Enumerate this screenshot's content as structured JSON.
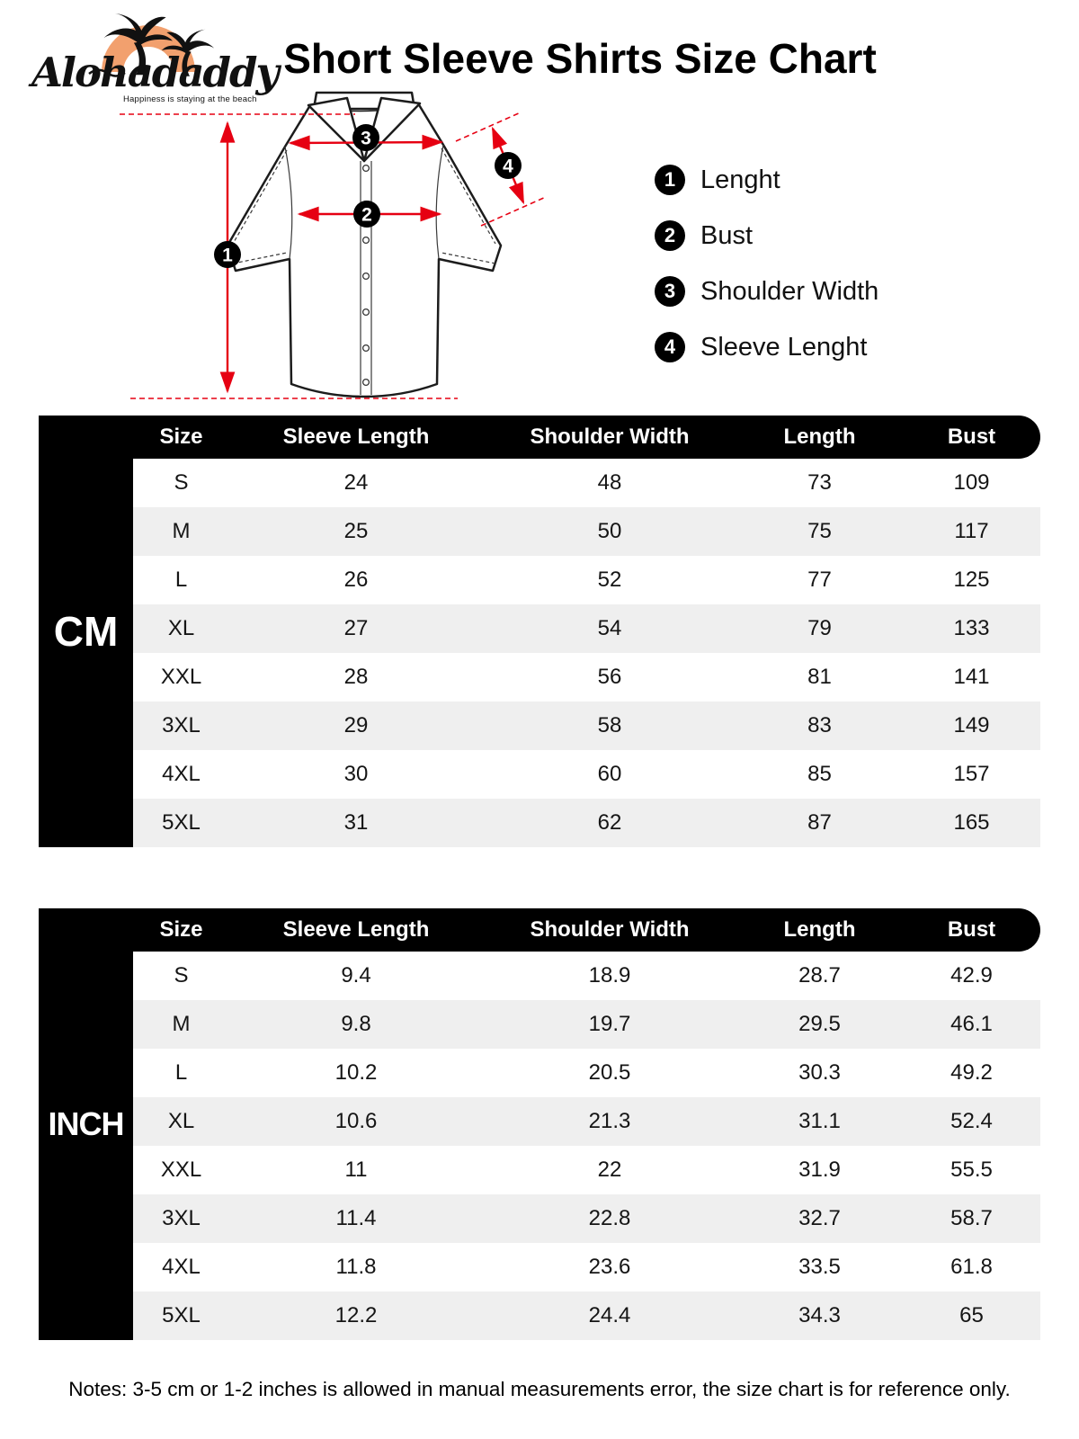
{
  "page": {
    "title": "Short Sleeve Shirts Size Chart",
    "notes": "Notes: 3-5 cm or 1-2 inches is allowed in manual measurements error, the size chart is for reference only."
  },
  "logo": {
    "brand": "Alohadaddy",
    "tagline": "Happiness is staying at the beach"
  },
  "legend": {
    "items": [
      {
        "number": "1",
        "label": "Lenght"
      },
      {
        "number": "2",
        "label": "Bust"
      },
      {
        "number": "3",
        "label": "Shoulder Width"
      },
      {
        "number": "4",
        "label": "Sleeve Lenght"
      }
    ]
  },
  "diagram": {
    "badges": [
      "1",
      "2",
      "3",
      "4"
    ]
  },
  "tables": [
    {
      "unit_label": "CM",
      "headers": [
        "Size",
        "Sleeve Length",
        "Shoulder Width",
        "Length",
        "Bust"
      ],
      "rows": [
        [
          "S",
          "24",
          "48",
          "73",
          "109"
        ],
        [
          "M",
          "25",
          "50",
          "75",
          "117"
        ],
        [
          "L",
          "26",
          "52",
          "77",
          "125"
        ],
        [
          "XL",
          "27",
          "54",
          "79",
          "133"
        ],
        [
          "XXL",
          "28",
          "56",
          "81",
          "141"
        ],
        [
          "3XL",
          "29",
          "58",
          "83",
          "149"
        ],
        [
          "4XL",
          "30",
          "60",
          "85",
          "157"
        ],
        [
          "5XL",
          "31",
          "62",
          "87",
          "165"
        ]
      ]
    },
    {
      "unit_label": "INCH",
      "headers": [
        "Size",
        "Sleeve Length",
        "Shoulder Width",
        "Length",
        "Bust"
      ],
      "rows": [
        [
          "S",
          "9.4",
          "18.9",
          "28.7",
          "42.9"
        ],
        [
          "M",
          "9.8",
          "19.7",
          "29.5",
          "46.1"
        ],
        [
          "L",
          "10.2",
          "20.5",
          "30.3",
          "49.2"
        ],
        [
          "XL",
          "10.6",
          "21.3",
          "31.1",
          "52.4"
        ],
        [
          "XXL",
          "11",
          "22",
          "31.9",
          "55.5"
        ],
        [
          "3XL",
          "11.4",
          "22.8",
          "32.7",
          "58.7"
        ],
        [
          "4XL",
          "11.8",
          "23.6",
          "33.5",
          "61.8"
        ],
        [
          "5XL",
          "12.2",
          "24.4",
          "34.3",
          "65"
        ]
      ]
    }
  ],
  "colors": {
    "accent_red": "#e60012",
    "row_alt": "#efefef",
    "sun_orange": "#f2a06e"
  }
}
